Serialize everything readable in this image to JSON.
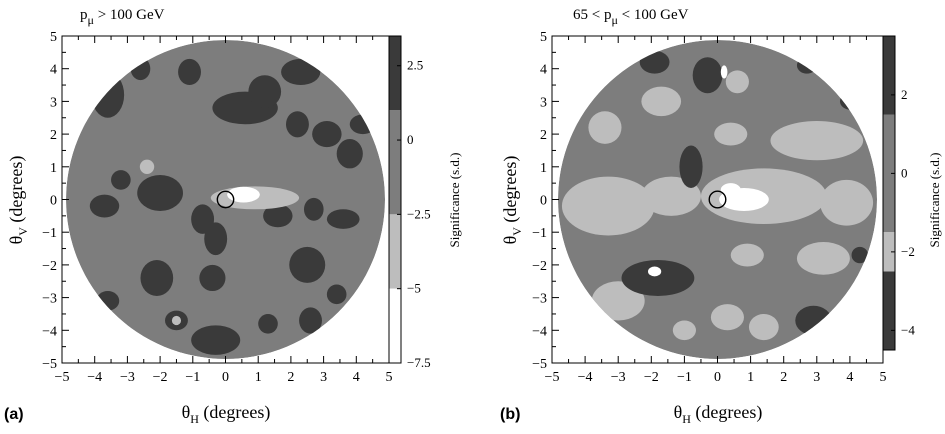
{
  "colors": {
    "level_high": "#3a3a3a",
    "level_mid": "#7d7d7d",
    "level_low": "#bdbdbd",
    "level_min": "#ffffff",
    "marker": "#000000"
  },
  "chart_data": [
    {
      "type": "heatmap",
      "panel_label": "(a)",
      "title_pre": "p",
      "title_sub": "μ",
      "title_post": " > 100 GeV",
      "xlabel_main": "θ",
      "xlabel_sub": "H",
      "xlabel_rest": " (degrees)",
      "ylabel_main": "θ",
      "ylabel_sub": "V",
      "ylabel_rest": " (degrees)",
      "xlim": [
        -5,
        5
      ],
      "ylim": [
        -5,
        5
      ],
      "xticks": [
        "−5",
        "−4",
        "−3",
        "−2",
        "−1",
        "0",
        "1",
        "2",
        "3",
        "4",
        "5"
      ],
      "yticks": [
        "−5",
        "−4",
        "−3",
        "−2",
        "−1",
        "0",
        "1",
        "2",
        "3",
        "4",
        "5"
      ],
      "colorbar_label": "Significance (s.d.)",
      "colorbar_range": [
        -7.5,
        3.5
      ],
      "colorbar_ticks": [
        "2.5",
        "0",
        "−2.5",
        "−5",
        "−7.5"
      ],
      "colorbar_tick_values": [
        2.5,
        0,
        -2.5,
        -5,
        -7.5
      ],
      "colorbar_levels": [
        {
          "from": 1.0,
          "to": 3.5,
          "shade": "level_high"
        },
        {
          "from": -2.5,
          "to": 1.0,
          "shade": "level_mid"
        },
        {
          "from": -5.0,
          "to": -2.5,
          "shade": "level_low"
        },
        {
          "from": -7.5,
          "to": -5.0,
          "shade": "level_min"
        }
      ],
      "sun_marker": {
        "x": 0,
        "y": 0,
        "radius": 0.25
      },
      "background_level": "level_mid",
      "regions": [
        {
          "level": "level_high",
          "cx": -3.6,
          "cy": 3.2,
          "rx": 0.5,
          "ry": 0.7
        },
        {
          "level": "level_high",
          "cx": -2.6,
          "cy": 4.0,
          "rx": 0.3,
          "ry": 0.35
        },
        {
          "level": "level_high",
          "cx": -1.1,
          "cy": 3.9,
          "rx": 0.35,
          "ry": 0.4
        },
        {
          "level": "level_high",
          "cx": 0.6,
          "cy": 2.8,
          "rx": 1.0,
          "ry": 0.5
        },
        {
          "level": "level_high",
          "cx": 1.2,
          "cy": 3.3,
          "rx": 0.5,
          "ry": 0.5
        },
        {
          "level": "level_high",
          "cx": 2.2,
          "cy": 2.3,
          "rx": 0.35,
          "ry": 0.4
        },
        {
          "level": "level_high",
          "cx": 2.3,
          "cy": 3.9,
          "rx": 0.6,
          "ry": 0.4
        },
        {
          "level": "level_high",
          "cx": 3.1,
          "cy": 2.0,
          "rx": 0.45,
          "ry": 0.4
        },
        {
          "level": "level_high",
          "cx": 3.8,
          "cy": 1.4,
          "rx": 0.4,
          "ry": 0.45
        },
        {
          "level": "level_high",
          "cx": 4.2,
          "cy": 2.3,
          "rx": 0.4,
          "ry": 0.3
        },
        {
          "level": "level_high",
          "cx": -3.7,
          "cy": -0.2,
          "rx": 0.45,
          "ry": 0.35
        },
        {
          "level": "level_high",
          "cx": -3.2,
          "cy": 0.6,
          "rx": 0.3,
          "ry": 0.3
        },
        {
          "level": "level_high",
          "cx": -2.0,
          "cy": 0.2,
          "rx": 0.7,
          "ry": 0.55
        },
        {
          "level": "level_high",
          "cx": -0.7,
          "cy": -0.6,
          "rx": 0.35,
          "ry": 0.45
        },
        {
          "level": "level_high",
          "cx": -0.3,
          "cy": -1.2,
          "rx": 0.35,
          "ry": 0.5
        },
        {
          "level": "level_high",
          "cx": 1.6,
          "cy": -0.5,
          "rx": 0.45,
          "ry": 0.35
        },
        {
          "level": "level_high",
          "cx": 2.7,
          "cy": -0.3,
          "rx": 0.3,
          "ry": 0.35
        },
        {
          "level": "level_high",
          "cx": 3.6,
          "cy": -0.6,
          "rx": 0.5,
          "ry": 0.3
        },
        {
          "level": "level_high",
          "cx": -2.1,
          "cy": -2.4,
          "rx": 0.5,
          "ry": 0.55
        },
        {
          "level": "level_high",
          "cx": -0.4,
          "cy": -2.4,
          "rx": 0.4,
          "ry": 0.4
        },
        {
          "level": "level_high",
          "cx": 2.5,
          "cy": -2.0,
          "rx": 0.55,
          "ry": 0.55
        },
        {
          "level": "level_high",
          "cx": -3.6,
          "cy": -3.1,
          "rx": 0.35,
          "ry": 0.3
        },
        {
          "level": "level_high",
          "cx": -1.5,
          "cy": -3.7,
          "rx": 0.35,
          "ry": 0.3
        },
        {
          "level": "level_high",
          "cx": -0.3,
          "cy": -4.3,
          "rx": 0.75,
          "ry": 0.45
        },
        {
          "level": "level_high",
          "cx": 1.3,
          "cy": -3.8,
          "rx": 0.3,
          "ry": 0.3
        },
        {
          "level": "level_high",
          "cx": 2.6,
          "cy": -3.7,
          "rx": 0.35,
          "ry": 0.4
        },
        {
          "level": "level_high",
          "cx": 3.4,
          "cy": -2.9,
          "rx": 0.3,
          "ry": 0.3
        },
        {
          "level": "level_low",
          "cx": 0.9,
          "cy": 0.05,
          "rx": 1.35,
          "ry": 0.35
        },
        {
          "level": "level_low",
          "cx": -2.4,
          "cy": 1.0,
          "rx": 0.22,
          "ry": 0.22
        },
        {
          "level": "level_low",
          "cx": -1.5,
          "cy": -3.7,
          "rx": 0.14,
          "ry": 0.14
        },
        {
          "level": "level_min",
          "cx": 0.55,
          "cy": 0.15,
          "rx": 0.5,
          "ry": 0.24
        }
      ]
    },
    {
      "type": "heatmap",
      "panel_label": "(b)",
      "title_pre": "65 < p",
      "title_sub": "μ",
      "title_post": " < 100 GeV",
      "xlabel_main": "θ",
      "xlabel_sub": "H",
      "xlabel_rest": " (degrees)",
      "ylabel_main": "θ",
      "ylabel_sub": "V",
      "ylabel_rest": " (degrees)",
      "xlim": [
        -5,
        5
      ],
      "ylim": [
        -5,
        5
      ],
      "xticks": [
        "−5",
        "−4",
        "−3",
        "−2",
        "−1",
        "0",
        "1",
        "2",
        "3",
        "4",
        "5"
      ],
      "yticks": [
        "−5",
        "−4",
        "−3",
        "−2",
        "−1",
        "0",
        "1",
        "2",
        "3",
        "4",
        "5"
      ],
      "colorbar_label": "Significance (s.d.)",
      "colorbar_range": [
        -4.5,
        3.5
      ],
      "colorbar_ticks": [
        "2",
        "0",
        "−2",
        "−4"
      ],
      "colorbar_tick_values": [
        2,
        0,
        -2,
        -4
      ],
      "colorbar_levels": [
        {
          "from": 1.5,
          "to": 3.5,
          "shade": "level_high"
        },
        {
          "from": -1.5,
          "to": 1.5,
          "shade": "level_mid"
        },
        {
          "from": -2.5,
          "to": -1.5,
          "shade": "level_low"
        },
        {
          "from": -4.5,
          "to": -2.5,
          "shade": "level_high"
        }
      ],
      "sun_marker": {
        "x": 0,
        "y": 0,
        "radius": 0.25
      },
      "background_level": "level_mid",
      "regions": [
        {
          "level": "level_low",
          "cx": -3.3,
          "cy": -0.2,
          "rx": 1.4,
          "ry": 0.9
        },
        {
          "level": "level_low",
          "cx": -3.4,
          "cy": 2.2,
          "rx": 0.5,
          "ry": 0.5
        },
        {
          "level": "level_low",
          "cx": -1.7,
          "cy": 3.0,
          "rx": 0.6,
          "ry": 0.45
        },
        {
          "level": "level_low",
          "cx": 0.6,
          "cy": 3.6,
          "rx": 0.35,
          "ry": 0.35
        },
        {
          "level": "level_low",
          "cx": 0.4,
          "cy": 2.0,
          "rx": 0.5,
          "ry": 0.35
        },
        {
          "level": "level_low",
          "cx": 3.0,
          "cy": 1.8,
          "rx": 1.4,
          "ry": 0.6
        },
        {
          "level": "level_low",
          "cx": -3.0,
          "cy": -3.1,
          "rx": 0.8,
          "ry": 0.6
        },
        {
          "level": "level_low",
          "cx": -1.4,
          "cy": 0.1,
          "rx": 0.9,
          "ry": 0.6
        },
        {
          "level": "level_low",
          "cx": 1.4,
          "cy": 0.1,
          "rx": 1.9,
          "ry": 0.85
        },
        {
          "level": "level_low",
          "cx": 3.9,
          "cy": -0.1,
          "rx": 0.8,
          "ry": 0.7
        },
        {
          "level": "level_low",
          "cx": 3.2,
          "cy": -1.8,
          "rx": 0.8,
          "ry": 0.5
        },
        {
          "level": "level_low",
          "cx": 0.9,
          "cy": -1.7,
          "rx": 0.5,
          "ry": 0.35
        },
        {
          "level": "level_low",
          "cx": 0.3,
          "cy": -3.6,
          "rx": 0.5,
          "ry": 0.4
        },
        {
          "level": "level_low",
          "cx": 1.4,
          "cy": -3.9,
          "rx": 0.45,
          "ry": 0.4
        },
        {
          "level": "level_low",
          "cx": -1.0,
          "cy": -4.0,
          "rx": 0.35,
          "ry": 0.3
        },
        {
          "level": "level_high",
          "cx": -1.9,
          "cy": 4.2,
          "rx": 0.45,
          "ry": 0.35
        },
        {
          "level": "level_high",
          "cx": -0.3,
          "cy": 3.8,
          "rx": 0.45,
          "ry": 0.55
        },
        {
          "level": "level_high",
          "cx": -0.8,
          "cy": 1.0,
          "rx": 0.35,
          "ry": 0.65
        },
        {
          "level": "level_high",
          "cx": 2.7,
          "cy": 4.1,
          "rx": 0.3,
          "ry": 0.25
        },
        {
          "level": "level_high",
          "cx": 4.0,
          "cy": 3.0,
          "rx": 0.3,
          "ry": 0.25
        },
        {
          "level": "level_high",
          "cx": -1.8,
          "cy": -2.4,
          "rx": 1.1,
          "ry": 0.55
        },
        {
          "level": "level_high",
          "cx": 2.9,
          "cy": -3.7,
          "rx": 0.55,
          "ry": 0.45
        },
        {
          "level": "level_high",
          "cx": 4.3,
          "cy": -1.7,
          "rx": 0.25,
          "ry": 0.25
        },
        {
          "level": "level_min",
          "cx": 0.8,
          "cy": 0.0,
          "rx": 0.75,
          "ry": 0.35
        },
        {
          "level": "level_min",
          "cx": 0.4,
          "cy": 0.3,
          "rx": 0.3,
          "ry": 0.2
        },
        {
          "level": "level_min",
          "cx": -1.9,
          "cy": -2.2,
          "rx": 0.2,
          "ry": 0.15
        },
        {
          "level": "level_min",
          "cx": 0.2,
          "cy": 3.9,
          "rx": 0.1,
          "ry": 0.2
        }
      ]
    }
  ]
}
